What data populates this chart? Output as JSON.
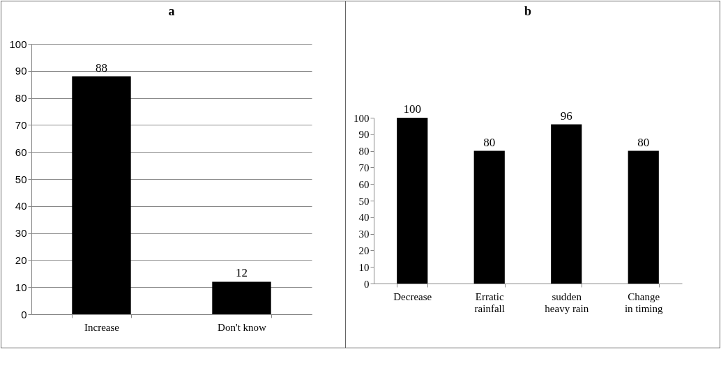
{
  "chart_data": [
    {
      "type": "bar",
      "title": "a",
      "categories": [
        "Increase",
        "Don't know"
      ],
      "values": [
        88,
        12
      ],
      "color": "#000000",
      "ylim": [
        0,
        100
      ],
      "yticks": [
        0,
        10,
        20,
        30,
        40,
        50,
        60,
        70,
        80,
        90,
        100
      ],
      "grid": "y",
      "data_labels": true
    },
    {
      "type": "bar",
      "title": "b",
      "categories": [
        "Decrease",
        "Erratic rainfall",
        "sudden heavy rain",
        "Change in timing"
      ],
      "values": [
        100,
        80,
        96,
        80
      ],
      "color": "#000000",
      "ylim": [
        0,
        100
      ],
      "yticks": [
        0,
        10,
        20,
        30,
        40,
        50,
        60,
        70,
        80,
        90,
        100
      ],
      "grid": false,
      "data_labels": true
    }
  ]
}
